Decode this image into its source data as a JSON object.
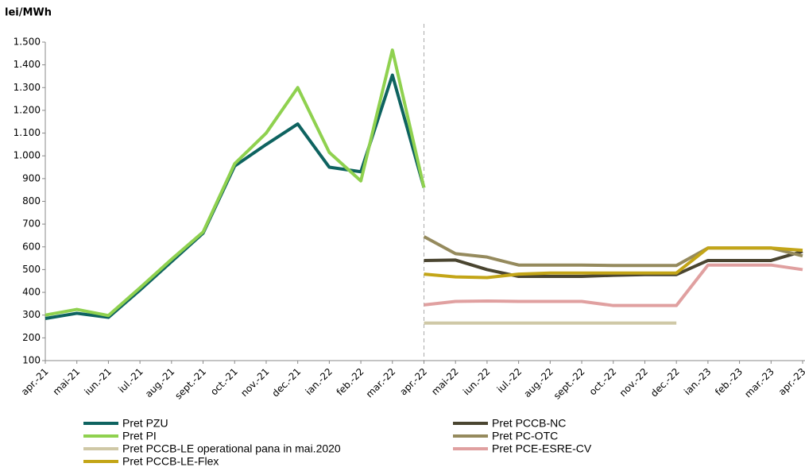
{
  "chart_data": {
    "type": "line",
    "y_label": "lei/MWh",
    "categories": [
      "apr.-21",
      "mai-21",
      "iun.-21",
      "iul.-21",
      "aug.-21",
      "sept.-21",
      "oct.-21",
      "nov.-21",
      "dec.-21",
      "ian.-22",
      "feb.-22",
      "mar.-22",
      "apr.-22",
      "mai-22",
      "iun.-22",
      "iul.-22",
      "aug.-22",
      "sept.-22",
      "oct.-22",
      "nov.-22",
      "dec.-22",
      "ian.-23",
      "feb.-23",
      "mar.-23",
      "apr.-23"
    ],
    "series": [
      {
        "name": "Pret PZU",
        "color": "#0e6360",
        "values": [
          285,
          308,
          290,
          410,
          535,
          660,
          955,
          1050,
          1140,
          950,
          930,
          1355,
          860,
          null,
          null,
          null,
          null,
          null,
          null,
          null,
          null,
          null,
          null,
          null,
          null
        ]
      },
      {
        "name": "Pret PCCB-NC",
        "color": "#4a4530",
        "values": [
          null,
          null,
          null,
          null,
          null,
          null,
          null,
          null,
          null,
          null,
          null,
          null,
          540,
          542,
          500,
          470,
          470,
          470,
          475,
          478,
          478,
          540,
          540,
          540,
          580
        ]
      },
      {
        "name": "Pret PI",
        "color": "#8fd14f",
        "values": [
          300,
          325,
          298,
          420,
          545,
          665,
          965,
          1100,
          1300,
          1015,
          890,
          1465,
          860,
          null,
          null,
          null,
          null,
          null,
          null,
          null,
          null,
          null,
          null,
          null,
          null
        ]
      },
      {
        "name": "Pret PC-OTC",
        "color": "#958a5d",
        "values": [
          null,
          null,
          null,
          null,
          null,
          null,
          null,
          null,
          null,
          null,
          null,
          null,
          645,
          570,
          555,
          520,
          520,
          520,
          518,
          518,
          518,
          595,
          595,
          595,
          560
        ]
      },
      {
        "name": "Pret PCCB-LE operational pana in mai.2020",
        "color": "#cfc8a6",
        "values": [
          null,
          null,
          null,
          null,
          null,
          null,
          null,
          null,
          null,
          null,
          null,
          null,
          265,
          265,
          265,
          265,
          265,
          265,
          265,
          265,
          265,
          null,
          null,
          null,
          null
        ]
      },
      {
        "name": "Pret PCE-ESRE-CV",
        "color": "#e0a0a0",
        "values": [
          null,
          null,
          null,
          null,
          null,
          null,
          null,
          null,
          null,
          null,
          null,
          null,
          345,
          360,
          362,
          360,
          360,
          360,
          342,
          342,
          342,
          520,
          520,
          520,
          500
        ]
      },
      {
        "name": "Pret PCCB-LE-Flex",
        "color": "#c3a517",
        "values": [
          null,
          null,
          null,
          null,
          null,
          null,
          null,
          null,
          null,
          null,
          null,
          null,
          480,
          468,
          465,
          480,
          485,
          485,
          485,
          485,
          485,
          595,
          595,
          595,
          585
        ]
      }
    ],
    "ylim": [
      100,
      1500
    ],
    "yticks": [
      100,
      200,
      300,
      400,
      500,
      600,
      700,
      800,
      900,
      {
        "value": 1000,
        "label": "1.000"
      },
      {
        "value": 1100,
        "label": "1.100"
      },
      {
        "value": 1200,
        "label": "1.200"
      },
      {
        "value": 1300,
        "label": "1.300"
      },
      {
        "value": 1400,
        "label": "1.400"
      },
      {
        "value": 1500,
        "label": "1.500"
      }
    ]
  }
}
